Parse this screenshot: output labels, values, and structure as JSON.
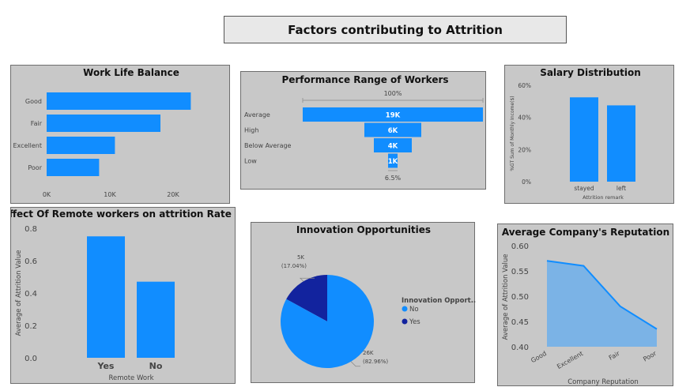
{
  "page_title": "Factors contributing to Attrition",
  "colors": {
    "bar": "#118dff",
    "dark": "#12239e",
    "panel": "#c8c8c8",
    "area": "#7bb3e6"
  },
  "chart_data": [
    {
      "id": "wlb",
      "type": "bar",
      "orientation": "horizontal",
      "title": "Work Life Balance",
      "categories": [
        "Good",
        "Fair",
        "Excellent",
        "Poor"
      ],
      "values": [
        22800,
        18000,
        10800,
        8300
      ],
      "xlim": [
        0,
        25000
      ],
      "ticks": [
        0,
        10000,
        20000
      ],
      "tick_labels": [
        "0K",
        "10K",
        "20K"
      ]
    },
    {
      "id": "perf",
      "type": "bar",
      "subtype": "funnel",
      "title": "Performance Range of Workers",
      "categories": [
        "Average",
        "High",
        "Below Average",
        "Low"
      ],
      "values": [
        19000,
        6000,
        4000,
        1000
      ],
      "value_labels": [
        "19K",
        "6K",
        "4K",
        "1K"
      ],
      "top_pct": "100%",
      "bottom_pct": "6.5%"
    },
    {
      "id": "salary",
      "type": "bar",
      "title": "Salary Distribution",
      "categories": [
        "stayed",
        "left"
      ],
      "values": [
        52.5,
        47.5
      ],
      "ylim": [
        0,
        60
      ],
      "ticks": [
        0,
        20,
        40,
        60
      ],
      "tick_labels": [
        "0%",
        "20%",
        "40%",
        "60%"
      ],
      "xlabel": "Attrition remark",
      "ylabel": "%GT Sum of Monthly Income($)"
    },
    {
      "id": "remote",
      "type": "bar",
      "title": "Effect Of Remote workers on attrition Rate",
      "categories": [
        "Yes",
        "No"
      ],
      "values": [
        0.75,
        0.47
      ],
      "ylim": [
        0,
        0.8
      ],
      "ticks": [
        0,
        0.2,
        0.4,
        0.6,
        0.8
      ],
      "tick_labels": [
        "0.0",
        "0.2",
        "0.4",
        "0.6",
        "0.8"
      ],
      "xlabel": "Remote Work",
      "ylabel": "Average of Attrition Value"
    },
    {
      "id": "innov",
      "type": "pie",
      "title": "Innovation Opportunities",
      "categories": [
        "No",
        "Yes"
      ],
      "values": [
        82.96,
        17.04
      ],
      "count_labels": [
        "26K",
        "5K"
      ],
      "pct_labels": [
        "(82.96%)",
        "(17.04%)"
      ],
      "legend_title": "Innovation Opport...",
      "legend_position": "right"
    },
    {
      "id": "reput",
      "type": "area",
      "title": "Average Company's Reputation",
      "categories": [
        "Good",
        "Excellent",
        "Fair",
        "Poor"
      ],
      "values": [
        0.57,
        0.56,
        0.48,
        0.435
      ],
      "ylim": [
        0.4,
        0.6
      ],
      "ticks": [
        0.4,
        0.45,
        0.5,
        0.55,
        0.6
      ],
      "tick_labels": [
        "0.40",
        "0.45",
        "0.50",
        "0.55",
        "0.60"
      ],
      "xlabel": "Company Reputation",
      "ylabel": "Average of Attrition Value"
    }
  ]
}
